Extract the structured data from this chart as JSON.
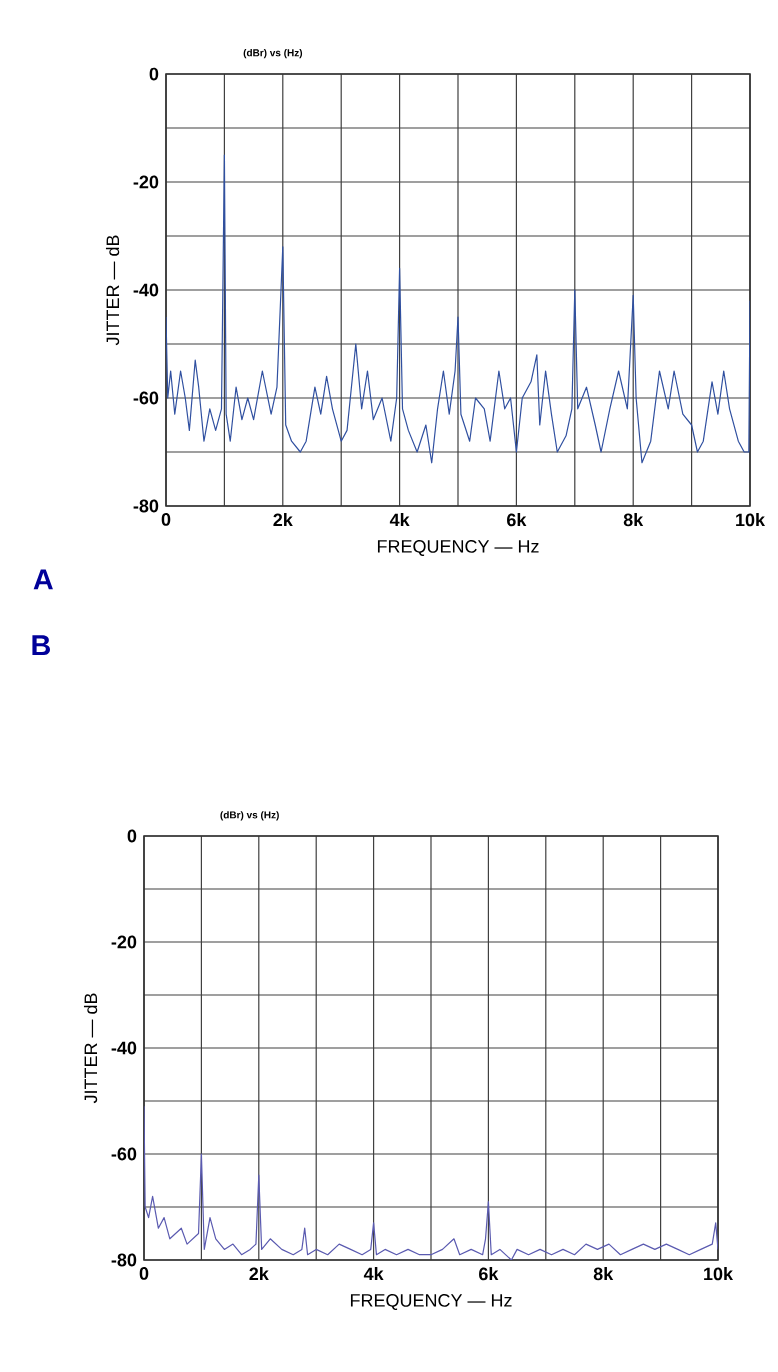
{
  "chart_data": [
    {
      "type": "line",
      "xlabel": "FREQUENCY — Hz",
      "ylabel": "JITTER — dB",
      "annotations": [
        "(dBr) vs (Hz)",
        "A"
      ],
      "grid": true,
      "xlim": [
        0,
        10000
      ],
      "ylim": [
        -80,
        0
      ],
      "xticks": [
        0,
        {
          "value": 1000,
          "label": null
        },
        {
          "value": 2000,
          "label": "2k"
        },
        {
          "value": 3000,
          "label": null
        },
        {
          "value": 4000,
          "label": "4k"
        },
        {
          "value": 5000,
          "label": null
        },
        {
          "value": 6000,
          "label": "6k"
        },
        {
          "value": 7000,
          "label": null
        },
        {
          "value": 8000,
          "label": "8k"
        },
        {
          "value": 9000,
          "label": null
        },
        {
          "value": 10000,
          "label": "10k"
        }
      ],
      "yticks": [
        -80,
        {
          "value": -70,
          "label": null
        },
        -60,
        {
          "value": -50,
          "label": null
        },
        -40,
        {
          "value": -30,
          "label": null
        },
        -20,
        {
          "value": -10,
          "label": null
        },
        0
      ],
      "series": [
        {
          "color": "#3050a0",
          "x": [
            0,
            30,
            80,
            150,
            250,
            330,
            400,
            500,
            560,
            650,
            750,
            850,
            950,
            1000,
            1030,
            1100,
            1200,
            1300,
            1400,
            1500,
            1650,
            1800,
            1900,
            2000,
            2050,
            2150,
            2300,
            2400,
            2550,
            2650,
            2750,
            2850,
            3000,
            3100,
            3250,
            3350,
            3450,
            3550,
            3700,
            3850,
            3950,
            4000,
            4050,
            4150,
            4300,
            4450,
            4550,
            4650,
            4750,
            4850,
            4950,
            5000,
            5050,
            5200,
            5300,
            5450,
            5550,
            5700,
            5800,
            5900,
            6000,
            6100,
            6250,
            6350,
            6400,
            6500,
            6600,
            6700,
            6850,
            6950,
            7000,
            7050,
            7200,
            7350,
            7450,
            7600,
            7750,
            7900,
            8000,
            8050,
            8150,
            8300,
            8450,
            8600,
            8700,
            8850,
            9000,
            9100,
            9200,
            9350,
            9450,
            9550,
            9650,
            9800,
            9900,
            9980,
            10000
          ],
          "values": [
            -45,
            -60,
            -55,
            -63,
            -55,
            -60,
            -66,
            -53,
            -58,
            -68,
            -62,
            -66,
            -62,
            -15,
            -63,
            -68,
            -58,
            -64,
            -60,
            -64,
            -55,
            -63,
            -58,
            -32,
            -65,
            -68,
            -70,
            -68,
            -58,
            -63,
            -56,
            -62,
            -68,
            -66,
            -50,
            -62,
            -55,
            -64,
            -60,
            -68,
            -60,
            -36,
            -62,
            -66,
            -70,
            -65,
            -72,
            -62,
            -55,
            -63,
            -55,
            -45,
            -63,
            -68,
            -60,
            -62,
            -68,
            -55,
            -62,
            -60,
            -70,
            -60,
            -57,
            -52,
            -65,
            -55,
            -63,
            -70,
            -67,
            -62,
            -40,
            -62,
            -58,
            -65,
            -70,
            -62,
            -55,
            -62,
            -41,
            -60,
            -72,
            -68,
            -55,
            -62,
            -55,
            -63,
            -65,
            -70,
            -68,
            -57,
            -63,
            -55,
            -62,
            -68,
            -70,
            -70,
            -42
          ]
        }
      ]
    },
    {
      "type": "line",
      "xlabel": "FREQUENCY — Hz",
      "ylabel": "JITTER — dB",
      "annotations": [
        "(dBr) vs (Hz)",
        "B"
      ],
      "grid": true,
      "xlim": [
        0,
        10000
      ],
      "ylim": [
        -80,
        0
      ],
      "xticks": [
        0,
        {
          "value": 1000,
          "label": null
        },
        {
          "value": 2000,
          "label": "2k"
        },
        {
          "value": 3000,
          "label": null
        },
        {
          "value": 4000,
          "label": "4k"
        },
        {
          "value": 5000,
          "label": null
        },
        {
          "value": 6000,
          "label": "6k"
        },
        {
          "value": 7000,
          "label": null
        },
        {
          "value": 8000,
          "label": "8k"
        },
        {
          "value": 9000,
          "label": null
        },
        {
          "value": 10000,
          "label": "10k"
        }
      ],
      "yticks": [
        -80,
        {
          "value": -70,
          "label": null
        },
        -60,
        {
          "value": -50,
          "label": null
        },
        -40,
        {
          "value": -30,
          "label": null
        },
        -20,
        {
          "value": -10,
          "label": null
        },
        0
      ],
      "series": [
        {
          "color": "#5a5ab0",
          "x": [
            0,
            20,
            80,
            150,
            250,
            350,
            450,
            550,
            650,
            750,
            850,
            950,
            1000,
            1050,
            1150,
            1250,
            1400,
            1550,
            1700,
            1850,
            1950,
            2000,
            2050,
            2200,
            2400,
            2600,
            2750,
            2800,
            2850,
            3000,
            3200,
            3400,
            3600,
            3800,
            3950,
            4000,
            4050,
            4200,
            4400,
            4600,
            4800,
            5000,
            5200,
            5400,
            5500,
            5700,
            5900,
            5950,
            6000,
            6050,
            6200,
            6400,
            6500,
            6700,
            6900,
            7100,
            7300,
            7500,
            7700,
            7900,
            8100,
            8300,
            8500,
            8700,
            8900,
            9100,
            9300,
            9500,
            9700,
            9900,
            9960,
            10000
          ],
          "values": [
            -51,
            -70,
            -72,
            -68,
            -74,
            -72,
            -76,
            -75,
            -74,
            -77,
            -76,
            -75,
            -60,
            -78,
            -72,
            -76,
            -78,
            -77,
            -79,
            -78,
            -77,
            -64,
            -78,
            -76,
            -78,
            -79,
            -78,
            -74,
            -79,
            -78,
            -79,
            -77,
            -78,
            -79,
            -78,
            -73,
            -79,
            -78,
            -79,
            -78,
            -79,
            -79,
            -78,
            -76,
            -79,
            -78,
            -79,
            -76,
            -69,
            -79,
            -78,
            -80,
            -78,
            -79,
            -78,
            -79,
            -78,
            -79,
            -77,
            -78,
            -77,
            -79,
            -78,
            -77,
            -78,
            -77,
            -78,
            -79,
            -78,
            -77,
            -73,
            -78
          ]
        }
      ]
    }
  ]
}
